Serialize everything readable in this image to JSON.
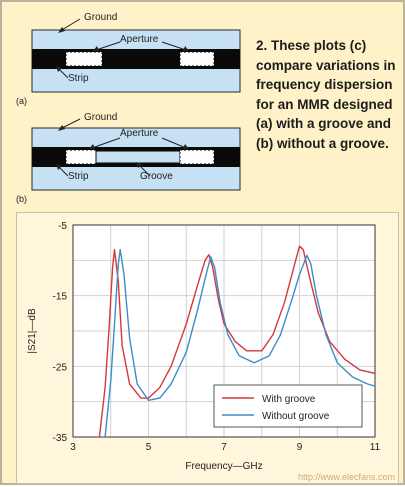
{
  "caption": "2. These plots (c) compare variations in frequency dispersion for an MMR designed (a) with a groove and (b) without a groove.",
  "diagram_a": {
    "panel_label": "(a)",
    "ground_label": "Ground",
    "aperture_label": "Aperture",
    "strip_label": "Strip"
  },
  "diagram_b": {
    "panel_label": "(b)",
    "ground_label": "Ground",
    "aperture_label": "Aperture",
    "strip_label": "Strip",
    "groove_label": "Groove"
  },
  "colors": {
    "substrate": "#c6e0f4",
    "metal": "#0a0a0a",
    "with_groove": "#d6383a",
    "without_groove": "#3f8cc4",
    "plot_bg": "#ffffff"
  },
  "watermark": "http://www.elecfans.com",
  "chart_data": {
    "type": "line",
    "title": "",
    "xlabel": "Frequency—GHz",
    "ylabel": "|S21|—dB",
    "xlim": [
      3,
      11
    ],
    "ylim": [
      -35,
      -5
    ],
    "xticks": [
      3,
      5,
      7,
      9,
      11
    ],
    "yticks": [
      -5,
      -15,
      -25,
      -35
    ],
    "grid": true,
    "legend": "bottom-right",
    "series": [
      {
        "name": "With groove",
        "color": "#d6383a",
        "x": [
          3.7,
          3.85,
          3.95,
          4.05,
          4.1,
          4.2,
          4.3,
          4.5,
          4.8,
          5.0,
          5.3,
          5.6,
          6.0,
          6.3,
          6.5,
          6.6,
          6.7,
          6.85,
          7.0,
          7.3,
          7.6,
          8.0,
          8.3,
          8.6,
          8.85,
          9.0,
          9.1,
          9.25,
          9.5,
          9.8,
          10.2,
          10.6,
          11.0
        ],
        "y": [
          -35,
          -28,
          -20,
          -11,
          -8.5,
          -13,
          -22,
          -27.5,
          -29.5,
          -29.5,
          -28,
          -25,
          -19,
          -13.5,
          -10,
          -9.2,
          -11,
          -15.5,
          -19,
          -21.5,
          -22.8,
          -22.8,
          -20.5,
          -16,
          -11,
          -8,
          -8.5,
          -12,
          -17.5,
          -21.5,
          -24,
          -25.5,
          -26
        ]
      },
      {
        "name": "Without groove",
        "color": "#3f8cc4",
        "x": [
          3.85,
          4.0,
          4.1,
          4.2,
          4.25,
          4.35,
          4.5,
          4.7,
          5.0,
          5.3,
          5.6,
          6.0,
          6.3,
          6.55,
          6.65,
          6.75,
          6.9,
          7.1,
          7.4,
          7.8,
          8.2,
          8.5,
          8.8,
          9.0,
          9.2,
          9.3,
          9.45,
          9.7,
          10.0,
          10.4,
          10.8,
          11.0
        ],
        "y": [
          -35,
          -27,
          -19,
          -10.5,
          -8.5,
          -12,
          -21,
          -27.5,
          -29.8,
          -29.5,
          -27.5,
          -23,
          -17,
          -11.5,
          -9.5,
          -11,
          -16,
          -20.5,
          -23.5,
          -24.5,
          -23.5,
          -20.5,
          -15.5,
          -12,
          -9.3,
          -10.5,
          -15,
          -20.5,
          -24.5,
          -26.5,
          -27.5,
          -27.8
        ]
      }
    ]
  }
}
